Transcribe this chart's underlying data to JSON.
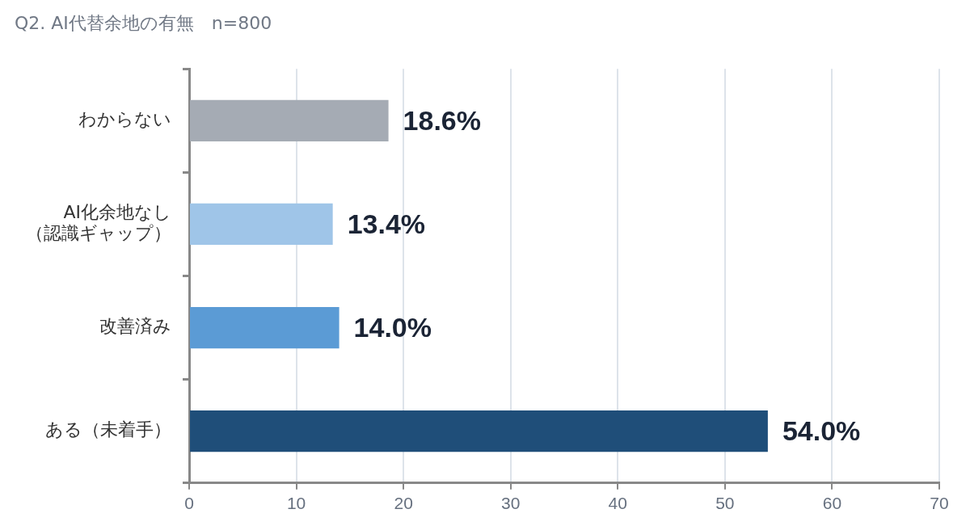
{
  "chart_data": {
    "type": "bar",
    "orientation": "horizontal",
    "title": "Q2. AI代替余地の有無　n=800",
    "categories": [
      "わからない",
      "AI化余地なし（認識ギャップ）",
      "改善済み",
      "ある（未着手）"
    ],
    "values": [
      18.6,
      13.4,
      14.0,
      54.0
    ],
    "colors": [
      "#a5abb4",
      "#9fc5e8",
      "#5b9bd5",
      "#1f4e79"
    ],
    "value_labels": [
      "18.6%",
      "13.4%",
      "14.0%",
      "54.0%"
    ],
    "xlim": [
      0,
      70
    ],
    "xticks": [
      0,
      10,
      20,
      30,
      40,
      50,
      60,
      70
    ],
    "grid": "x",
    "legend": false
  }
}
